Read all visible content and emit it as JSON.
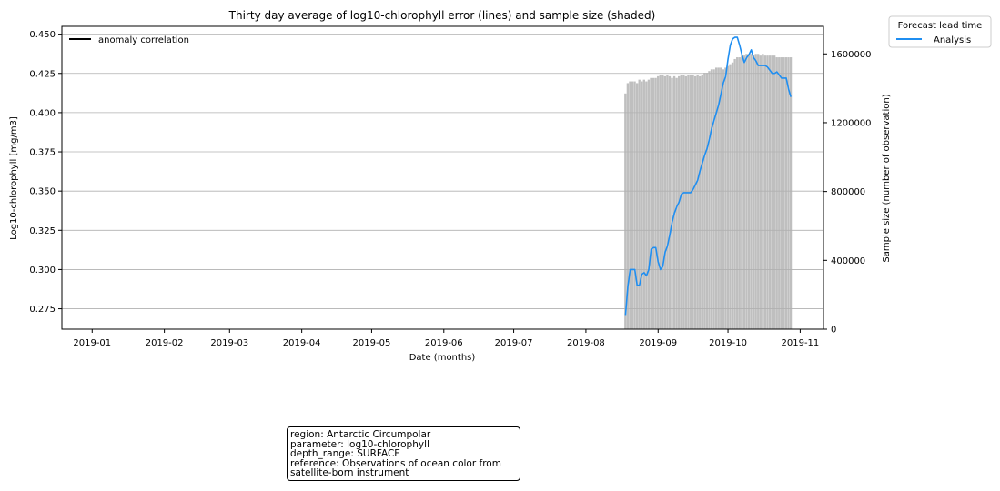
{
  "chart_data": {
    "type": "line",
    "title": "Thirty day average of log10-chlorophyll error (lines) and sample size (shaded)",
    "xlabel": "Date (months)",
    "ylabel": "Log10-chlorophyll [mg/m3]",
    "y2label": "Sample size (number of observation)",
    "x_ticks": [
      "2019-01",
      "2019-02",
      "2019-03",
      "2019-04",
      "2019-05",
      "2019-06",
      "2019-07",
      "2019-08",
      "2019-09",
      "2019-10",
      "2019-11"
    ],
    "xlim": [
      "2018-12-19",
      "2019-11-11"
    ],
    "ylim": [
      0.262,
      0.455
    ],
    "y_ticks": [
      0.275,
      0.3,
      0.325,
      0.35,
      0.375,
      0.4,
      0.425,
      0.45
    ],
    "y2lim": [
      0,
      1760000
    ],
    "y2_ticks": [
      0,
      400000,
      800000,
      1200000,
      1600000
    ],
    "grid": "horizontal",
    "legend_left": {
      "entries": [
        "anomaly correlation"
      ],
      "placement": "top-left"
    },
    "legend_right": {
      "title": "Forecast lead time",
      "entries": [
        "Analysis"
      ],
      "placement": "outside-top-right"
    },
    "series": [
      {
        "name": "Analysis",
        "color": "#1f8ef1",
        "points": [
          [
            "2019-08-18",
            0.271
          ],
          [
            "2019-08-19",
            0.289
          ],
          [
            "2019-08-20",
            0.3
          ],
          [
            "2019-08-21",
            0.3
          ],
          [
            "2019-08-22",
            0.3
          ],
          [
            "2019-08-23",
            0.29
          ],
          [
            "2019-08-24",
            0.29
          ],
          [
            "2019-08-25",
            0.297
          ],
          [
            "2019-08-26",
            0.298
          ],
          [
            "2019-08-27",
            0.296
          ],
          [
            "2019-08-28",
            0.3
          ],
          [
            "2019-08-29",
            0.313
          ],
          [
            "2019-08-30",
            0.314
          ],
          [
            "2019-08-31",
            0.314
          ],
          [
            "2019-09-01",
            0.305
          ],
          [
            "2019-09-02",
            0.3
          ],
          [
            "2019-09-03",
            0.302
          ],
          [
            "2019-09-04",
            0.311
          ],
          [
            "2019-09-05",
            0.315
          ],
          [
            "2019-09-06",
            0.322
          ],
          [
            "2019-09-07",
            0.33
          ],
          [
            "2019-09-08",
            0.336
          ],
          [
            "2019-09-09",
            0.34
          ],
          [
            "2019-09-10",
            0.343
          ],
          [
            "2019-09-11",
            0.348
          ],
          [
            "2019-09-12",
            0.349
          ],
          [
            "2019-09-13",
            0.349
          ],
          [
            "2019-09-14",
            0.349
          ],
          [
            "2019-09-15",
            0.349
          ],
          [
            "2019-09-16",
            0.351
          ],
          [
            "2019-09-17",
            0.354
          ],
          [
            "2019-09-18",
            0.357
          ],
          [
            "2019-09-19",
            0.363
          ],
          [
            "2019-09-20",
            0.368
          ],
          [
            "2019-09-21",
            0.373
          ],
          [
            "2019-09-22",
            0.377
          ],
          [
            "2019-09-23",
            0.383
          ],
          [
            "2019-09-24",
            0.39
          ],
          [
            "2019-09-25",
            0.395
          ],
          [
            "2019-09-26",
            0.4
          ],
          [
            "2019-09-27",
            0.405
          ],
          [
            "2019-09-28",
            0.412
          ],
          [
            "2019-09-29",
            0.419
          ],
          [
            "2019-09-30",
            0.423
          ],
          [
            "2019-10-01",
            0.434
          ],
          [
            "2019-10-02",
            0.443
          ],
          [
            "2019-10-03",
            0.447
          ],
          [
            "2019-10-04",
            0.448
          ],
          [
            "2019-10-05",
            0.448
          ],
          [
            "2019-10-06",
            0.443
          ],
          [
            "2019-10-07",
            0.437
          ],
          [
            "2019-10-08",
            0.432
          ],
          [
            "2019-10-09",
            0.435
          ],
          [
            "2019-10-10",
            0.437
          ],
          [
            "2019-10-11",
            0.44
          ],
          [
            "2019-10-12",
            0.435
          ],
          [
            "2019-10-13",
            0.433
          ],
          [
            "2019-10-14",
            0.43
          ],
          [
            "2019-10-15",
            0.43
          ],
          [
            "2019-10-16",
            0.43
          ],
          [
            "2019-10-17",
            0.43
          ],
          [
            "2019-10-18",
            0.429
          ],
          [
            "2019-10-19",
            0.427
          ],
          [
            "2019-10-20",
            0.425
          ],
          [
            "2019-10-21",
            0.425
          ],
          [
            "2019-10-22",
            0.426
          ],
          [
            "2019-10-23",
            0.424
          ],
          [
            "2019-10-24",
            0.422
          ],
          [
            "2019-10-25",
            0.422
          ],
          [
            "2019-10-26",
            0.422
          ],
          [
            "2019-10-27",
            0.415
          ],
          [
            "2019-10-28",
            0.41
          ]
        ]
      }
    ],
    "sample_size": {
      "name": "sample size",
      "color": "#bfbfbf",
      "start": "2019-08-18",
      "values": [
        1370000,
        1430000,
        1440000,
        1440000,
        1440000,
        1430000,
        1450000,
        1440000,
        1450000,
        1440000,
        1450000,
        1460000,
        1460000,
        1460000,
        1470000,
        1480000,
        1480000,
        1470000,
        1480000,
        1470000,
        1460000,
        1470000,
        1460000,
        1470000,
        1480000,
        1480000,
        1470000,
        1480000,
        1480000,
        1480000,
        1470000,
        1480000,
        1470000,
        1480000,
        1490000,
        1490000,
        1500000,
        1510000,
        1510000,
        1520000,
        1520000,
        1520000,
        1510000,
        1520000,
        1530000,
        1540000,
        1550000,
        1570000,
        1580000,
        1580000,
        1590000,
        1590000,
        1600000,
        1600000,
        1600000,
        1590000,
        1600000,
        1600000,
        1590000,
        1600000,
        1590000,
        1590000,
        1590000,
        1590000,
        1590000,
        1580000,
        1580000,
        1580000,
        1580000,
        1580000,
        1580000,
        1580000
      ]
    }
  },
  "info_box": {
    "lines": [
      "region: Antarctic Circumpolar",
      "parameter: log10-chlorophyll",
      "depth_range: SURFACE",
      "reference: Observations of ocean color from",
      "satellite-born instrument"
    ]
  }
}
